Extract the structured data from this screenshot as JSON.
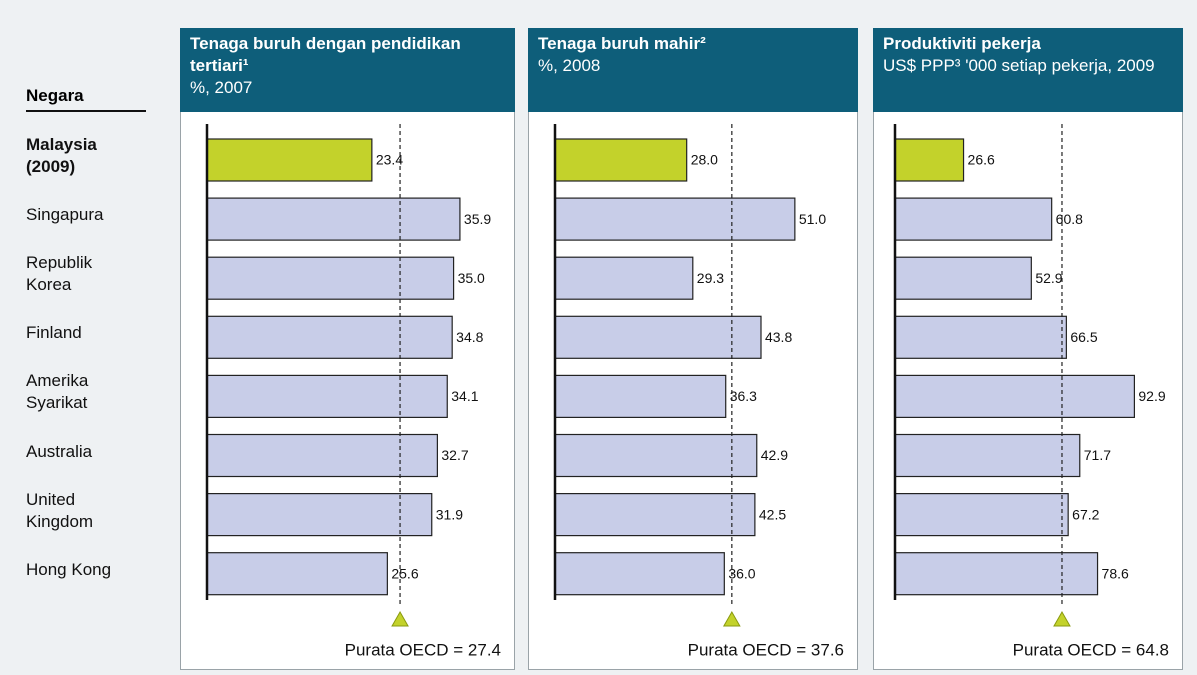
{
  "row_header": "Negara",
  "chart_data": [
    {
      "type": "bar",
      "title": "Tenaga buruh dengan pendidikan tertiari¹",
      "subtitle": "%, 2007",
      "categories": [
        "Malaysia (2009)",
        "Singapura",
        "Republik Korea",
        "Finland",
        "Amerika Syarikat",
        "Australia",
        "United Kingdom",
        "Hong Kong"
      ],
      "values": [
        23.4,
        35.9,
        35.0,
        34.8,
        34.1,
        32.7,
        31.9,
        25.6
      ],
      "value_labels": [
        "23.4",
        "35.9",
        "35.0",
        "34.8",
        "34.1",
        "32.7",
        "31.9",
        "25.6"
      ],
      "colors": [
        "#c3d22b",
        "#c8cde8",
        "#c8cde8",
        "#c8cde8",
        "#c8cde8",
        "#c8cde8",
        "#c8cde8",
        "#c8cde8"
      ],
      "xlim": [
        0,
        44
      ],
      "reference": {
        "value": 27.4,
        "label": "Purata OECD = 27.4"
      }
    },
    {
      "type": "bar",
      "title": "Tenaga buruh mahir²",
      "subtitle": "%, 2008",
      "values": [
        28.0,
        51.0,
        29.3,
        43.8,
        36.3,
        42.9,
        42.5,
        36.0
      ],
      "value_labels": [
        "28.0",
        "51.0",
        "29.3",
        "43.8",
        "36.3",
        "42.9",
        "42.5",
        "36.0"
      ],
      "colors": [
        "#c3d22b",
        "#c8cde8",
        "#c8cde8",
        "#c8cde8",
        "#c8cde8",
        "#c8cde8",
        "#c8cde8",
        "#c8cde8"
      ],
      "xlim": [
        0,
        64
      ],
      "reference": {
        "value": 37.6,
        "label": "Purata OECD = 37.6"
      }
    },
    {
      "type": "bar",
      "title": "Produktiviti pekerja",
      "subtitle": "US$ PPP³ '000 setiap pekerja, 2009",
      "values": [
        26.6,
        60.8,
        52.9,
        66.5,
        92.9,
        71.7,
        67.2,
        78.6
      ],
      "value_labels": [
        "26.6",
        "60.8",
        "52.9",
        "66.5",
        "92.9",
        "71.7",
        "67.2",
        "78.6"
      ],
      "colors": [
        "#c3d22b",
        "#c8cde8",
        "#c8cde8",
        "#c8cde8",
        "#c8cde8",
        "#c8cde8",
        "#c8cde8",
        "#c8cde8"
      ],
      "xlim": [
        0,
        104
      ],
      "reference": {
        "value": 64.8,
        "label": "Purata OECD = 64.8"
      }
    }
  ]
}
